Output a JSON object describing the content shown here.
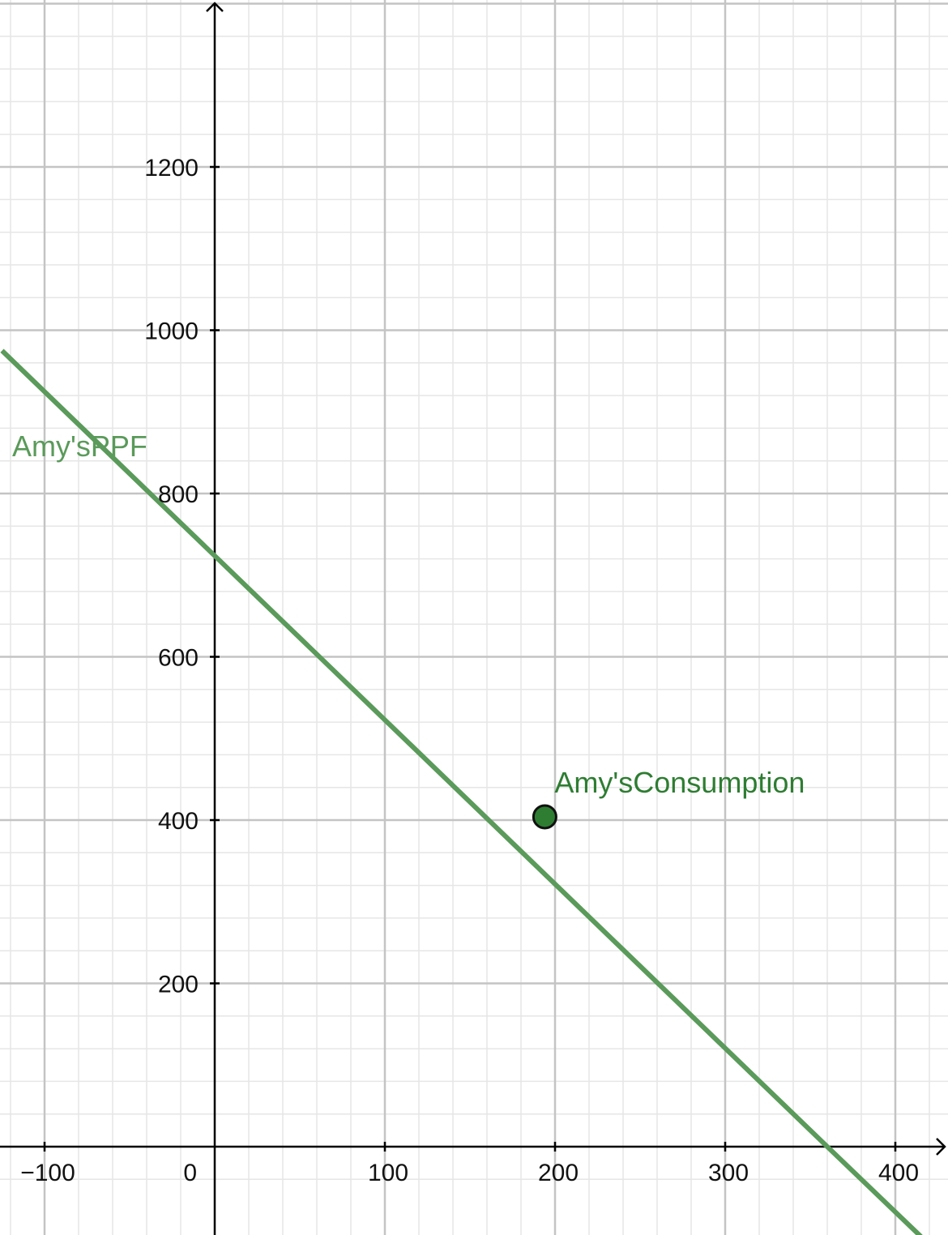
{
  "chart_data": {
    "type": "line",
    "title": "",
    "xlabel": "",
    "ylabel": "",
    "xlim": [
      -125,
      428
    ],
    "ylim": [
      -54,
      1403
    ],
    "grid": true,
    "x_ticks": [
      {
        "value": -100,
        "label": "−100"
      },
      {
        "value": 100,
        "label": "100"
      },
      {
        "value": 200,
        "label": "200"
      },
      {
        "value": 300,
        "label": "300"
      },
      {
        "value": 400,
        "label": "400"
      }
    ],
    "y_ticks": [
      {
        "value": 200,
        "label": "200"
      },
      {
        "value": 400,
        "label": "400"
      },
      {
        "value": 600,
        "label": "600"
      },
      {
        "value": 800,
        "label": "800"
      },
      {
        "value": 1000,
        "label": "1000"
      },
      {
        "value": 1200,
        "label": "1200"
      }
    ],
    "origin_label": "0",
    "series": [
      {
        "name": "Amy'sPPF",
        "kind": "line",
        "color": "#5a9a5a",
        "x": [
          -125,
          360,
          415
        ],
        "y": [
          975,
          0,
          -110
        ]
      },
      {
        "name": "Amy'sConsumption",
        "kind": "point",
        "color": "#2e7d32",
        "x": [
          194
        ],
        "y": [
          404
        ]
      }
    ]
  },
  "colors": {
    "major_grid": "#c4c4c4",
    "minor_grid": "#e6e6e6",
    "axis": "#000000",
    "ppf_label": "#5a9a5a",
    "point_label": "#2e7d32"
  }
}
